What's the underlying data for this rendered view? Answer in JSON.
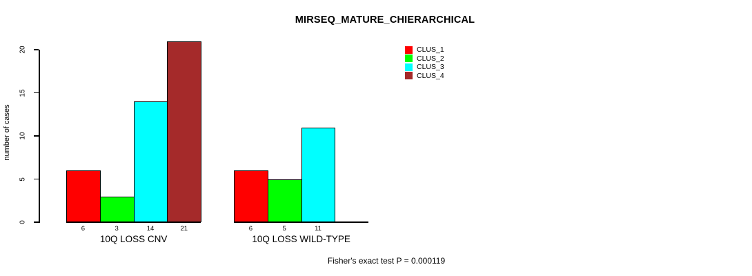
{
  "title": "MIRSEQ_MATURE_CHIERARCHICAL",
  "y_axis": {
    "label": "number of cases",
    "ticks": [
      0,
      5,
      10,
      15,
      20
    ]
  },
  "footer": "Fisher's exact test P = 0.000119",
  "legend": {
    "items": [
      {
        "label": "CLUS_1",
        "color": "#ff0000"
      },
      {
        "label": "CLUS_2",
        "color": "#00ff00"
      },
      {
        "label": "CLUS_3",
        "color": "#00ffff"
      },
      {
        "label": "CLUS_4",
        "color": "#a52a2a"
      }
    ]
  },
  "chart_data": {
    "type": "bar",
    "title": "MIRSEQ_MATURE_CHIERARCHICAL",
    "xlabel": "",
    "ylabel": "number of cases",
    "ylim": [
      0,
      21
    ],
    "yticks": [
      0,
      5,
      10,
      15,
      20
    ],
    "grid": false,
    "legend_position": "top-right-outside",
    "categories": [
      "10Q LOSS CNV",
      "10Q LOSS WILD-TYPE"
    ],
    "series": [
      {
        "name": "CLUS_1",
        "color": "#ff0000",
        "values": [
          6,
          6
        ]
      },
      {
        "name": "CLUS_2",
        "color": "#00ff00",
        "values": [
          3,
          5
        ]
      },
      {
        "name": "CLUS_3",
        "color": "#00ffff",
        "values": [
          14,
          11
        ]
      },
      {
        "name": "CLUS_4",
        "color": "#a52a2a",
        "values": [
          21,
          0
        ]
      }
    ],
    "bar_value_labels_shown": true,
    "zero_value_label_hidden": true,
    "annotation": "Fisher's exact test P = 0.000119"
  }
}
